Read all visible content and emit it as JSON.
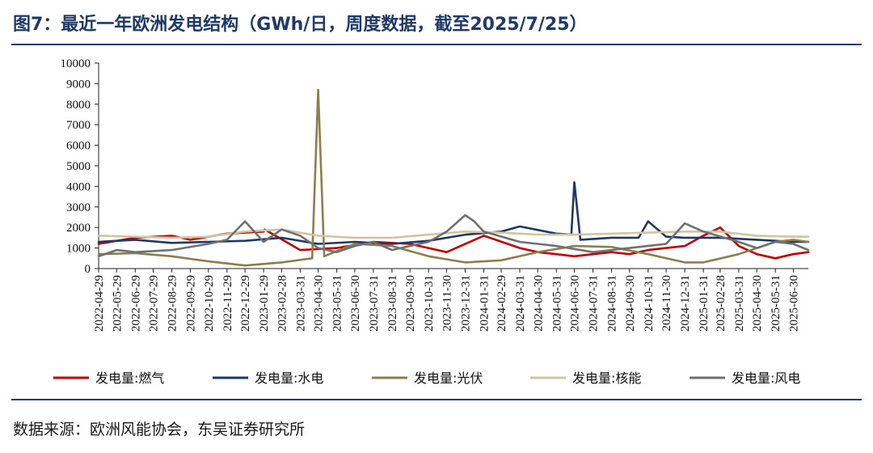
{
  "header": {
    "title": "图7：最近一年欧洲发电结构（GWh/日，周度数据，截至2025/7/25）"
  },
  "footer": {
    "source": "数据来源：欧洲风能协会，东吴证券研究所"
  },
  "chart_data": {
    "type": "line",
    "title": "图7：最近一年欧洲发电结构（GWh/日，周度数据，截至2025/7/25）",
    "xlabel": "",
    "ylabel": "",
    "ylim": [
      0,
      10000
    ],
    "yticks": [
      "0",
      "1000",
      "2000",
      "3000",
      "4000",
      "5000",
      "6000",
      "7000",
      "8000",
      "9000",
      "10000"
    ],
    "x_tick_labels": [
      "2022-04-29",
      "2022-05-29",
      "2022-06-29",
      "2022-07-29",
      "2022-08-29",
      "2022-09-29",
      "2022-10-29",
      "2022-11-29",
      "2022-12-29",
      "2023-01-29",
      "2023-02-28",
      "2023-03-31",
      "2023-04-30",
      "2023-05-31",
      "2023-06-30",
      "2023-07-31",
      "2023-08-31",
      "2023-09-30",
      "2023-10-31",
      "2023-11-30",
      "2023-12-31",
      "2024-01-31",
      "2024-02-29",
      "2024-03-31",
      "2024-04-30",
      "2024-05-31",
      "2024-06-30",
      "2024-07-31",
      "2024-08-31",
      "2024-09-30",
      "2024-10-31",
      "2024-11-30",
      "2024-12-31",
      "2025-01-31",
      "2025-02-28",
      "2025-03-31",
      "2025-04-30",
      "2025-05-31",
      "2025-06-30"
    ],
    "x_start": "2022-04-29",
    "x_end": "2025-07-25",
    "grid": false,
    "legend_position": "bottom",
    "series": [
      {
        "name": "发电量:燃气",
        "color": "#c00000",
        "x": [
          "2022-04-29",
          "2022-06-29",
          "2022-08-29",
          "2022-09-29",
          "2022-11-29",
          "2023-01-29",
          "2023-01-31",
          "2023-03-31",
          "2023-05-31",
          "2023-07-31",
          "2023-09-30",
          "2023-11-30",
          "2024-01-31",
          "2024-03-31",
          "2024-04-30",
          "2024-05-31",
          "2024-06-30",
          "2024-07-31",
          "2024-08-31",
          "2024-09-30",
          "2024-10-31",
          "2024-12-31",
          "2025-01-31",
          "2025-02-28",
          "2025-03-31",
          "2025-04-30",
          "2025-05-31",
          "2025-06-30",
          "2025-07-25"
        ],
        "y": [
          1200,
          1500,
          1600,
          1400,
          1700,
          1800,
          1900,
          900,
          1000,
          1300,
          1200,
          800,
          1600,
          1000,
          800,
          700,
          600,
          700,
          800,
          700,
          900,
          1100,
          1600,
          2000,
          1100,
          700,
          500,
          700,
          800
        ]
      },
      {
        "name": "发电量:水电",
        "color": "#1f3864",
        "x": [
          "2022-04-29",
          "2022-06-29",
          "2022-08-29",
          "2022-10-29",
          "2022-12-29",
          "2023-02-28",
          "2023-04-30",
          "2023-06-30",
          "2023-08-31",
          "2023-10-31",
          "2023-12-31",
          "2024-02-29",
          "2024-03-31",
          "2024-05-31",
          "2024-06-25",
          "2024-06-30",
          "2024-07-10",
          "2024-08-31",
          "2024-10-15",
          "2024-10-31",
          "2024-11-30",
          "2024-12-31",
          "2025-02-28",
          "2025-04-30",
          "2025-05-31",
          "2025-06-30",
          "2025-07-25"
        ],
        "y": [
          1300,
          1400,
          1250,
          1300,
          1350,
          1500,
          1200,
          1300,
          1200,
          1350,
          1650,
          1800,
          2050,
          1700,
          1650,
          4200,
          1400,
          1500,
          1500,
          2300,
          1550,
          1500,
          1500,
          1400,
          1350,
          1300,
          1300
        ]
      },
      {
        "name": "发电量:光伏",
        "color": "#8c7f4e",
        "x": [
          "2022-04-29",
          "2022-06-29",
          "2022-08-29",
          "2022-10-29",
          "2022-12-29",
          "2023-02-28",
          "2023-04-20",
          "2023-04-30",
          "2023-05-10",
          "2023-06-30",
          "2023-08-31",
          "2023-10-31",
          "2023-12-31",
          "2024-02-29",
          "2024-04-30",
          "2024-06-30",
          "2024-08-31",
          "2024-10-31",
          "2024-12-31",
          "2025-01-31",
          "2025-03-31",
          "2025-05-31",
          "2025-06-30",
          "2025-07-25"
        ],
        "y": [
          700,
          750,
          600,
          350,
          150,
          300,
          500,
          8700,
          600,
          1200,
          1100,
          600,
          300,
          400,
          800,
          1100,
          1050,
          700,
          300,
          300,
          700,
          1300,
          1400,
          1300
        ]
      },
      {
        "name": "发电量:核能",
        "color": "#cfc5a3",
        "x": [
          "2022-04-29",
          "2022-06-29",
          "2022-08-29",
          "2022-10-29",
          "2022-12-29",
          "2023-02-28",
          "2023-04-30",
          "2023-06-30",
          "2023-08-31",
          "2023-10-31",
          "2023-12-31",
          "2024-02-29",
          "2024-04-30",
          "2024-06-30",
          "2024-08-31",
          "2024-10-31",
          "2024-12-31",
          "2025-02-28",
          "2025-04-30",
          "2025-06-30",
          "2025-07-25"
        ],
        "y": [
          1600,
          1550,
          1500,
          1550,
          1800,
          1900,
          1600,
          1500,
          1500,
          1650,
          1800,
          1750,
          1650,
          1650,
          1700,
          1750,
          1800,
          1800,
          1600,
          1550,
          1550
        ]
      },
      {
        "name": "发电量:风电",
        "color": "#707070",
        "x": [
          "2022-04-29",
          "2022-05-29",
          "2022-06-29",
          "2022-08-29",
          "2022-10-29",
          "2022-11-29",
          "2022-12-29",
          "2023-01-29",
          "2023-02-28",
          "2023-03-31",
          "2023-04-30",
          "2023-05-31",
          "2023-06-30",
          "2023-07-31",
          "2023-08-31",
          "2023-10-31",
          "2023-11-30",
          "2023-12-31",
          "2024-01-15",
          "2024-01-31",
          "2024-03-31",
          "2024-05-31",
          "2024-07-31",
          "2024-09-30",
          "2024-11-30",
          "2024-12-31",
          "2025-01-31",
          "2025-03-31",
          "2025-04-30",
          "2025-05-31",
          "2025-06-30",
          "2025-07-25"
        ],
        "y": [
          600,
          900,
          800,
          900,
          1200,
          1400,
          2300,
          1300,
          1900,
          1600,
          1000,
          800,
          1100,
          1300,
          900,
          1300,
          1800,
          2600,
          2300,
          1800,
          1300,
          1100,
          800,
          1000,
          1200,
          2200,
          1800,
          1300,
          1000,
          1300,
          1200,
          900
        ]
      }
    ]
  }
}
